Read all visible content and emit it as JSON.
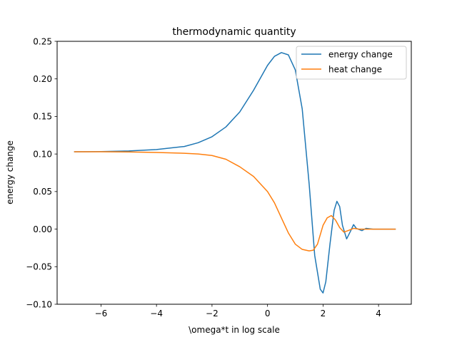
{
  "chart_data": {
    "type": "line",
    "title": "thermodynamic quantity",
    "xlabel": "\\omega*t in log scale",
    "ylabel": "energy change",
    "xlim": [
      -7.58,
      5.18
    ],
    "ylim": [
      -0.1,
      0.25
    ],
    "xticks": [
      -6,
      -4,
      -2,
      0,
      2,
      4
    ],
    "yticks": [
      -0.1,
      -0.05,
      0.0,
      0.05,
      0.1,
      0.15,
      0.2,
      0.25
    ],
    "xtick_labels": [
      "−6",
      "−4",
      "−2",
      "0",
      "2",
      "4"
    ],
    "ytick_labels": [
      "−0.10",
      "−0.05",
      "0.00",
      "0.05",
      "0.10",
      "0.15",
      "0.20",
      "0.25"
    ],
    "grid": false,
    "legend_position": "top-right",
    "series": [
      {
        "name": "energy change",
        "color": "#1f77b4",
        "x": [
          -6.95,
          -6.0,
          -5.0,
          -4.0,
          -3.0,
          -2.5,
          -2.0,
          -1.5,
          -1.0,
          -0.5,
          0.0,
          0.25,
          0.5,
          0.75,
          1.0,
          1.25,
          1.5,
          1.7,
          1.9,
          2.0,
          2.1,
          2.25,
          2.4,
          2.5,
          2.6,
          2.7,
          2.85,
          3.0,
          3.1,
          3.2,
          3.4,
          3.55,
          3.8,
          4.2,
          4.6
        ],
        "y": [
          0.103,
          0.1032,
          0.104,
          0.106,
          0.11,
          0.115,
          0.123,
          0.136,
          0.156,
          0.185,
          0.218,
          0.23,
          0.235,
          0.232,
          0.212,
          0.16,
          0.06,
          -0.035,
          -0.08,
          -0.085,
          -0.07,
          -0.02,
          0.025,
          0.037,
          0.03,
          0.005,
          -0.013,
          -0.002,
          0.006,
          0.001,
          -0.002,
          0.001,
          0.0,
          0.0,
          0.0
        ]
      },
      {
        "name": "heat change",
        "color": "#ff7f0e",
        "x": [
          -6.95,
          -6.0,
          -5.0,
          -4.0,
          -3.0,
          -2.5,
          -2.0,
          -1.5,
          -1.0,
          -0.5,
          0.0,
          0.25,
          0.5,
          0.75,
          1.0,
          1.25,
          1.5,
          1.65,
          1.8,
          2.0,
          2.15,
          2.3,
          2.45,
          2.6,
          2.75,
          2.9,
          3.1,
          3.3,
          3.5,
          3.8,
          4.2,
          4.6
        ],
        "y": [
          0.103,
          0.103,
          0.1028,
          0.102,
          0.101,
          0.1,
          0.098,
          0.093,
          0.083,
          0.07,
          0.05,
          0.035,
          0.015,
          -0.005,
          -0.02,
          -0.027,
          -0.029,
          -0.028,
          -0.02,
          0.005,
          0.015,
          0.018,
          0.012,
          0.002,
          -0.004,
          -0.002,
          0.001,
          0.0,
          0.0,
          0.0,
          0.0,
          0.0
        ]
      }
    ]
  }
}
